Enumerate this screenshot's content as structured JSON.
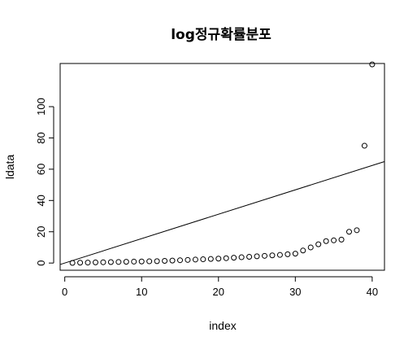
{
  "chart_data": {
    "type": "scatter",
    "title": "log정규확률분포",
    "xlabel": "index",
    "ylabel": "ldata",
    "xlim": [
      -0.6,
      41.6
    ],
    "ylim": [
      -4.6,
      127.6
    ],
    "xticks": [
      0,
      10,
      20,
      30,
      40
    ],
    "yticks": [
      0,
      20,
      40,
      60,
      80,
      100
    ],
    "grid": false,
    "points": {
      "x": [
        1,
        2,
        3,
        4,
        5,
        6,
        7,
        8,
        9,
        10,
        11,
        12,
        13,
        14,
        15,
        16,
        17,
        18,
        19,
        20,
        21,
        22,
        23,
        24,
        25,
        26,
        27,
        28,
        29,
        30,
        31,
        32,
        33,
        34,
        35,
        36,
        37,
        38,
        39,
        40
      ],
      "y": [
        0.1,
        0.2,
        0.3,
        0.4,
        0.5,
        0.6,
        0.7,
        0.8,
        0.9,
        1.0,
        1.1,
        1.2,
        1.4,
        1.6,
        1.8,
        2.0,
        2.2,
        2.4,
        2.6,
        2.8,
        3.1,
        3.4,
        3.7,
        4.0,
        4.3,
        4.6,
        4.9,
        5.2,
        5.6,
        6.0,
        8,
        10,
        12,
        14,
        14.5,
        15,
        20,
        21,
        75,
        127
      ]
    },
    "reference_line": {
      "intercept": 0,
      "slope": 1.56
    }
  }
}
